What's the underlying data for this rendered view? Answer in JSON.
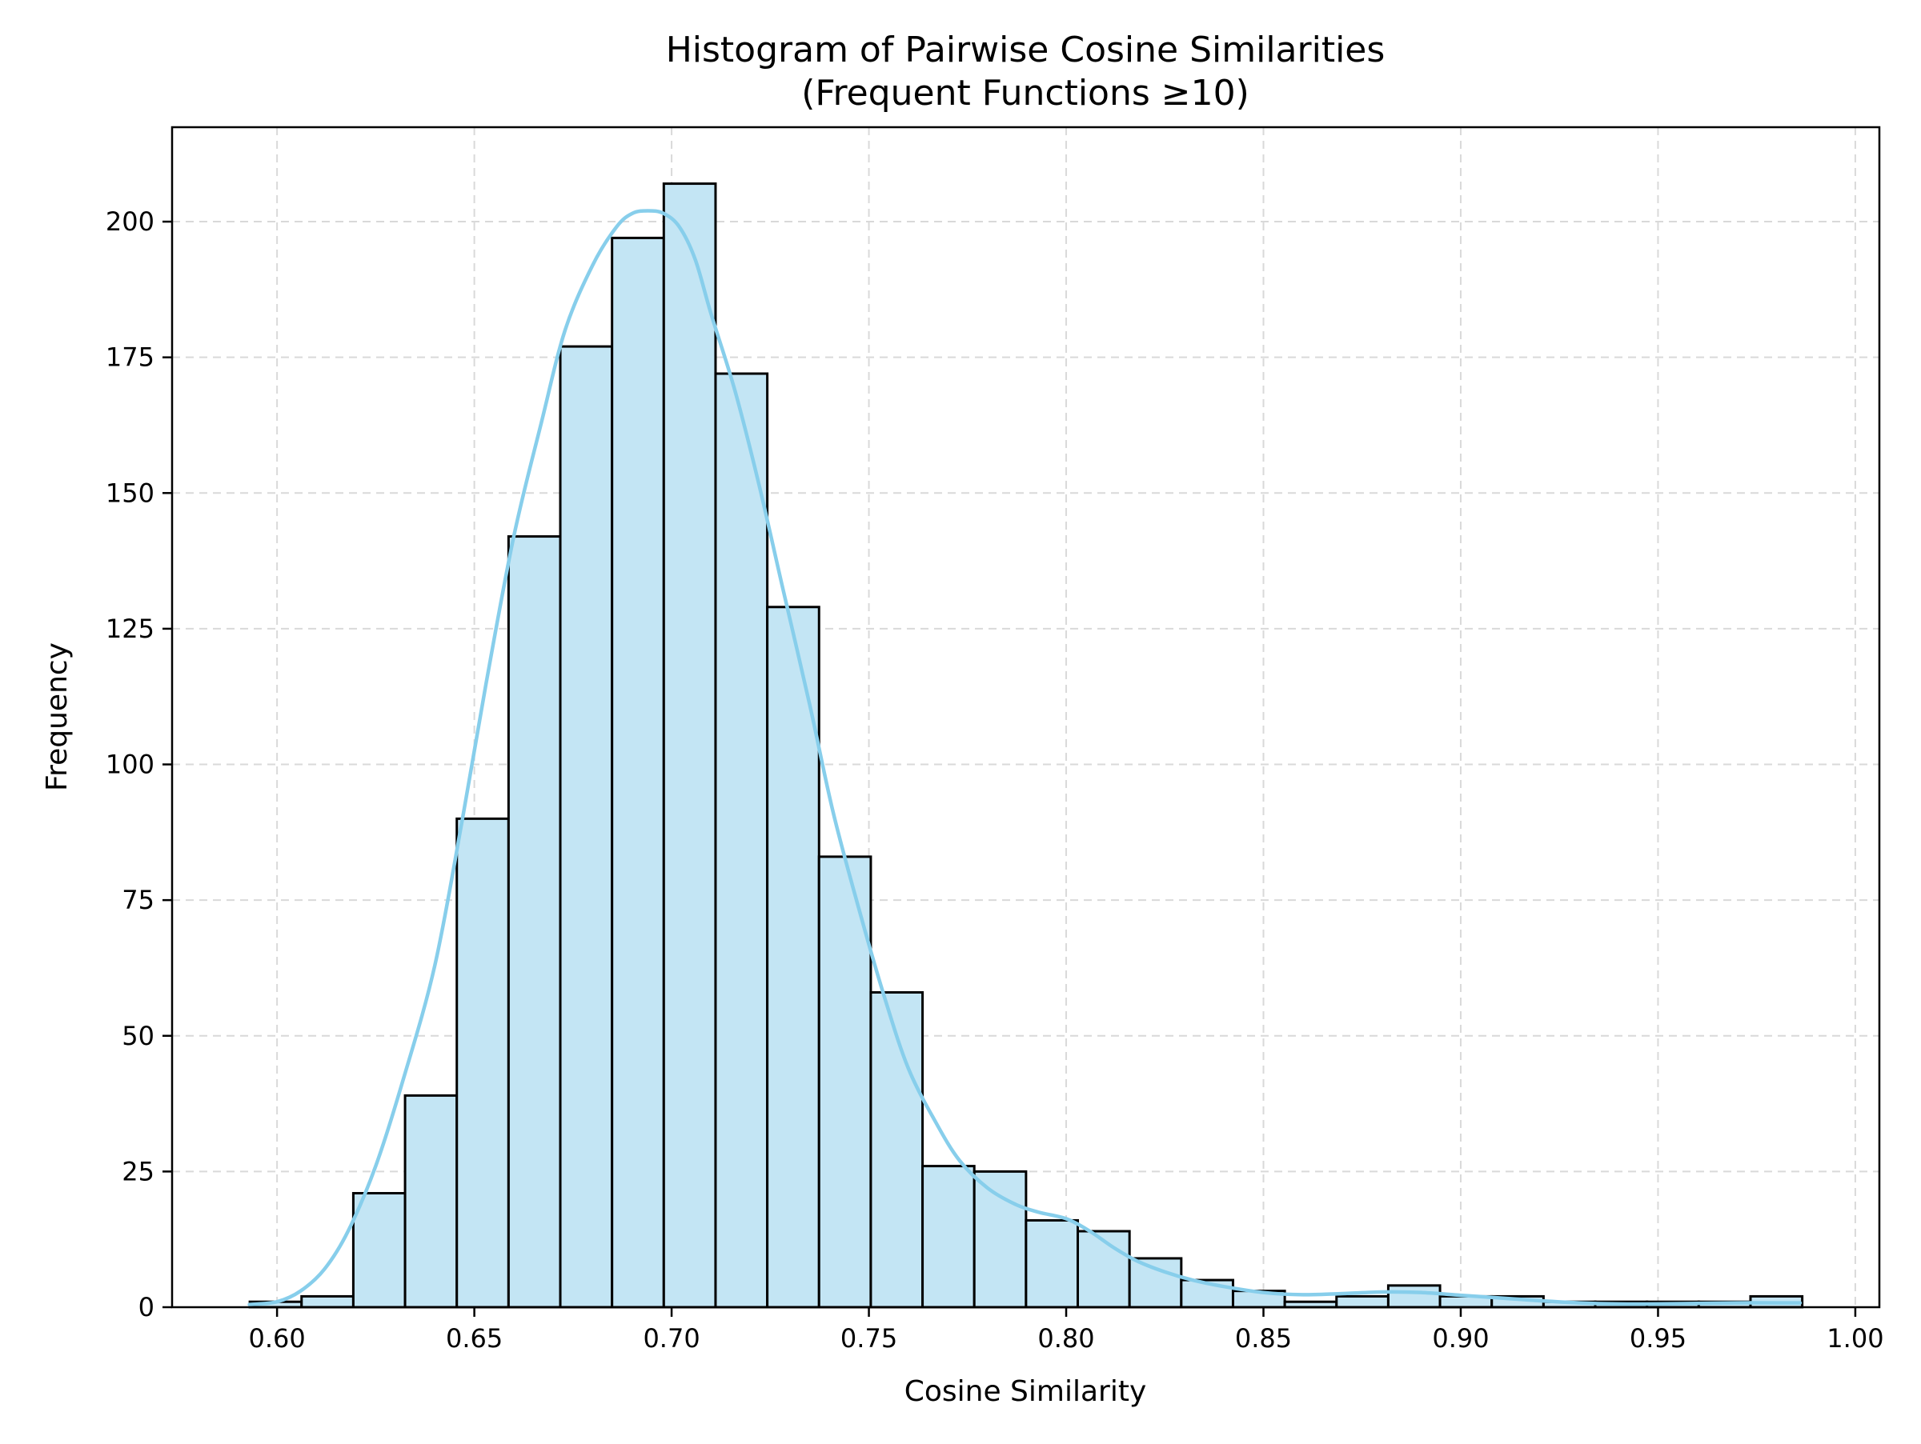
{
  "chart_data": {
    "type": "bar",
    "title": "Histogram of Pairwise Cosine Similarities",
    "subtitle": "(Frequent Functions ≥10)",
    "xlabel": "Cosine Similarity",
    "ylabel": "Frequency",
    "xlim": [
      0.5734,
      1.0061
    ],
    "ylim": [
      0,
      217.4
    ],
    "xticks": [
      0.6,
      0.65,
      0.7,
      0.75,
      0.8,
      0.85,
      0.9,
      0.95,
      1.0
    ],
    "xtick_labels": [
      "0.60",
      "0.65",
      "0.70",
      "0.75",
      "0.80",
      "0.85",
      "0.90",
      "0.95",
      "1.00"
    ],
    "yticks": [
      0,
      25,
      50,
      75,
      100,
      125,
      150,
      175,
      200
    ],
    "ytick_labels": [
      "0",
      "25",
      "50",
      "75",
      "100",
      "125",
      "150",
      "175",
      "200"
    ],
    "grid": true,
    "bin_start": 0.5931,
    "bin_width": 0.013115,
    "values": [
      1,
      2,
      21,
      39,
      90,
      142,
      177,
      197,
      207,
      172,
      129,
      83,
      58,
      26,
      25,
      16,
      14,
      9,
      5,
      3,
      1,
      2,
      4,
      2,
      2,
      1,
      1,
      1,
      1,
      2
    ],
    "bar_color": "#c3e5f4",
    "edge_color": "#000000",
    "kde": {
      "color": "#87ceeb",
      "x": [
        0.593,
        0.6,
        0.606,
        0.612,
        0.618,
        0.625,
        0.632,
        0.64,
        0.647,
        0.653,
        0.66,
        0.667,
        0.673,
        0.68,
        0.686,
        0.69,
        0.694,
        0.698,
        0.702,
        0.706,
        0.71,
        0.716,
        0.722,
        0.728,
        0.735,
        0.741,
        0.748,
        0.754,
        0.76,
        0.767,
        0.773,
        0.78,
        0.787,
        0.793,
        0.8,
        0.806,
        0.812,
        0.818,
        0.825,
        0.832,
        0.84,
        0.85,
        0.86,
        0.87,
        0.88,
        0.89,
        0.9,
        0.91,
        0.92,
        0.93,
        0.94,
        0.95,
        0.96,
        0.97,
        0.98,
        0.986
      ],
      "y": [
        0.5,
        1,
        3,
        7,
        14,
        26,
        42,
        63,
        90,
        115,
        142,
        163,
        180,
        192,
        199,
        201.5,
        202,
        201.5,
        199,
        193,
        183,
        169,
        152,
        133,
        111,
        91,
        72,
        57,
        44,
        34,
        27,
        22,
        19,
        17.5,
        16.3,
        14,
        11,
        8.5,
        6.5,
        5,
        3.8,
        2.7,
        2.3,
        2.5,
        2.8,
        2.7,
        2.2,
        1.7,
        1.2,
        0.8,
        0.6,
        0.6,
        0.7,
        0.8,
        0.8,
        0.8
      ]
    }
  }
}
